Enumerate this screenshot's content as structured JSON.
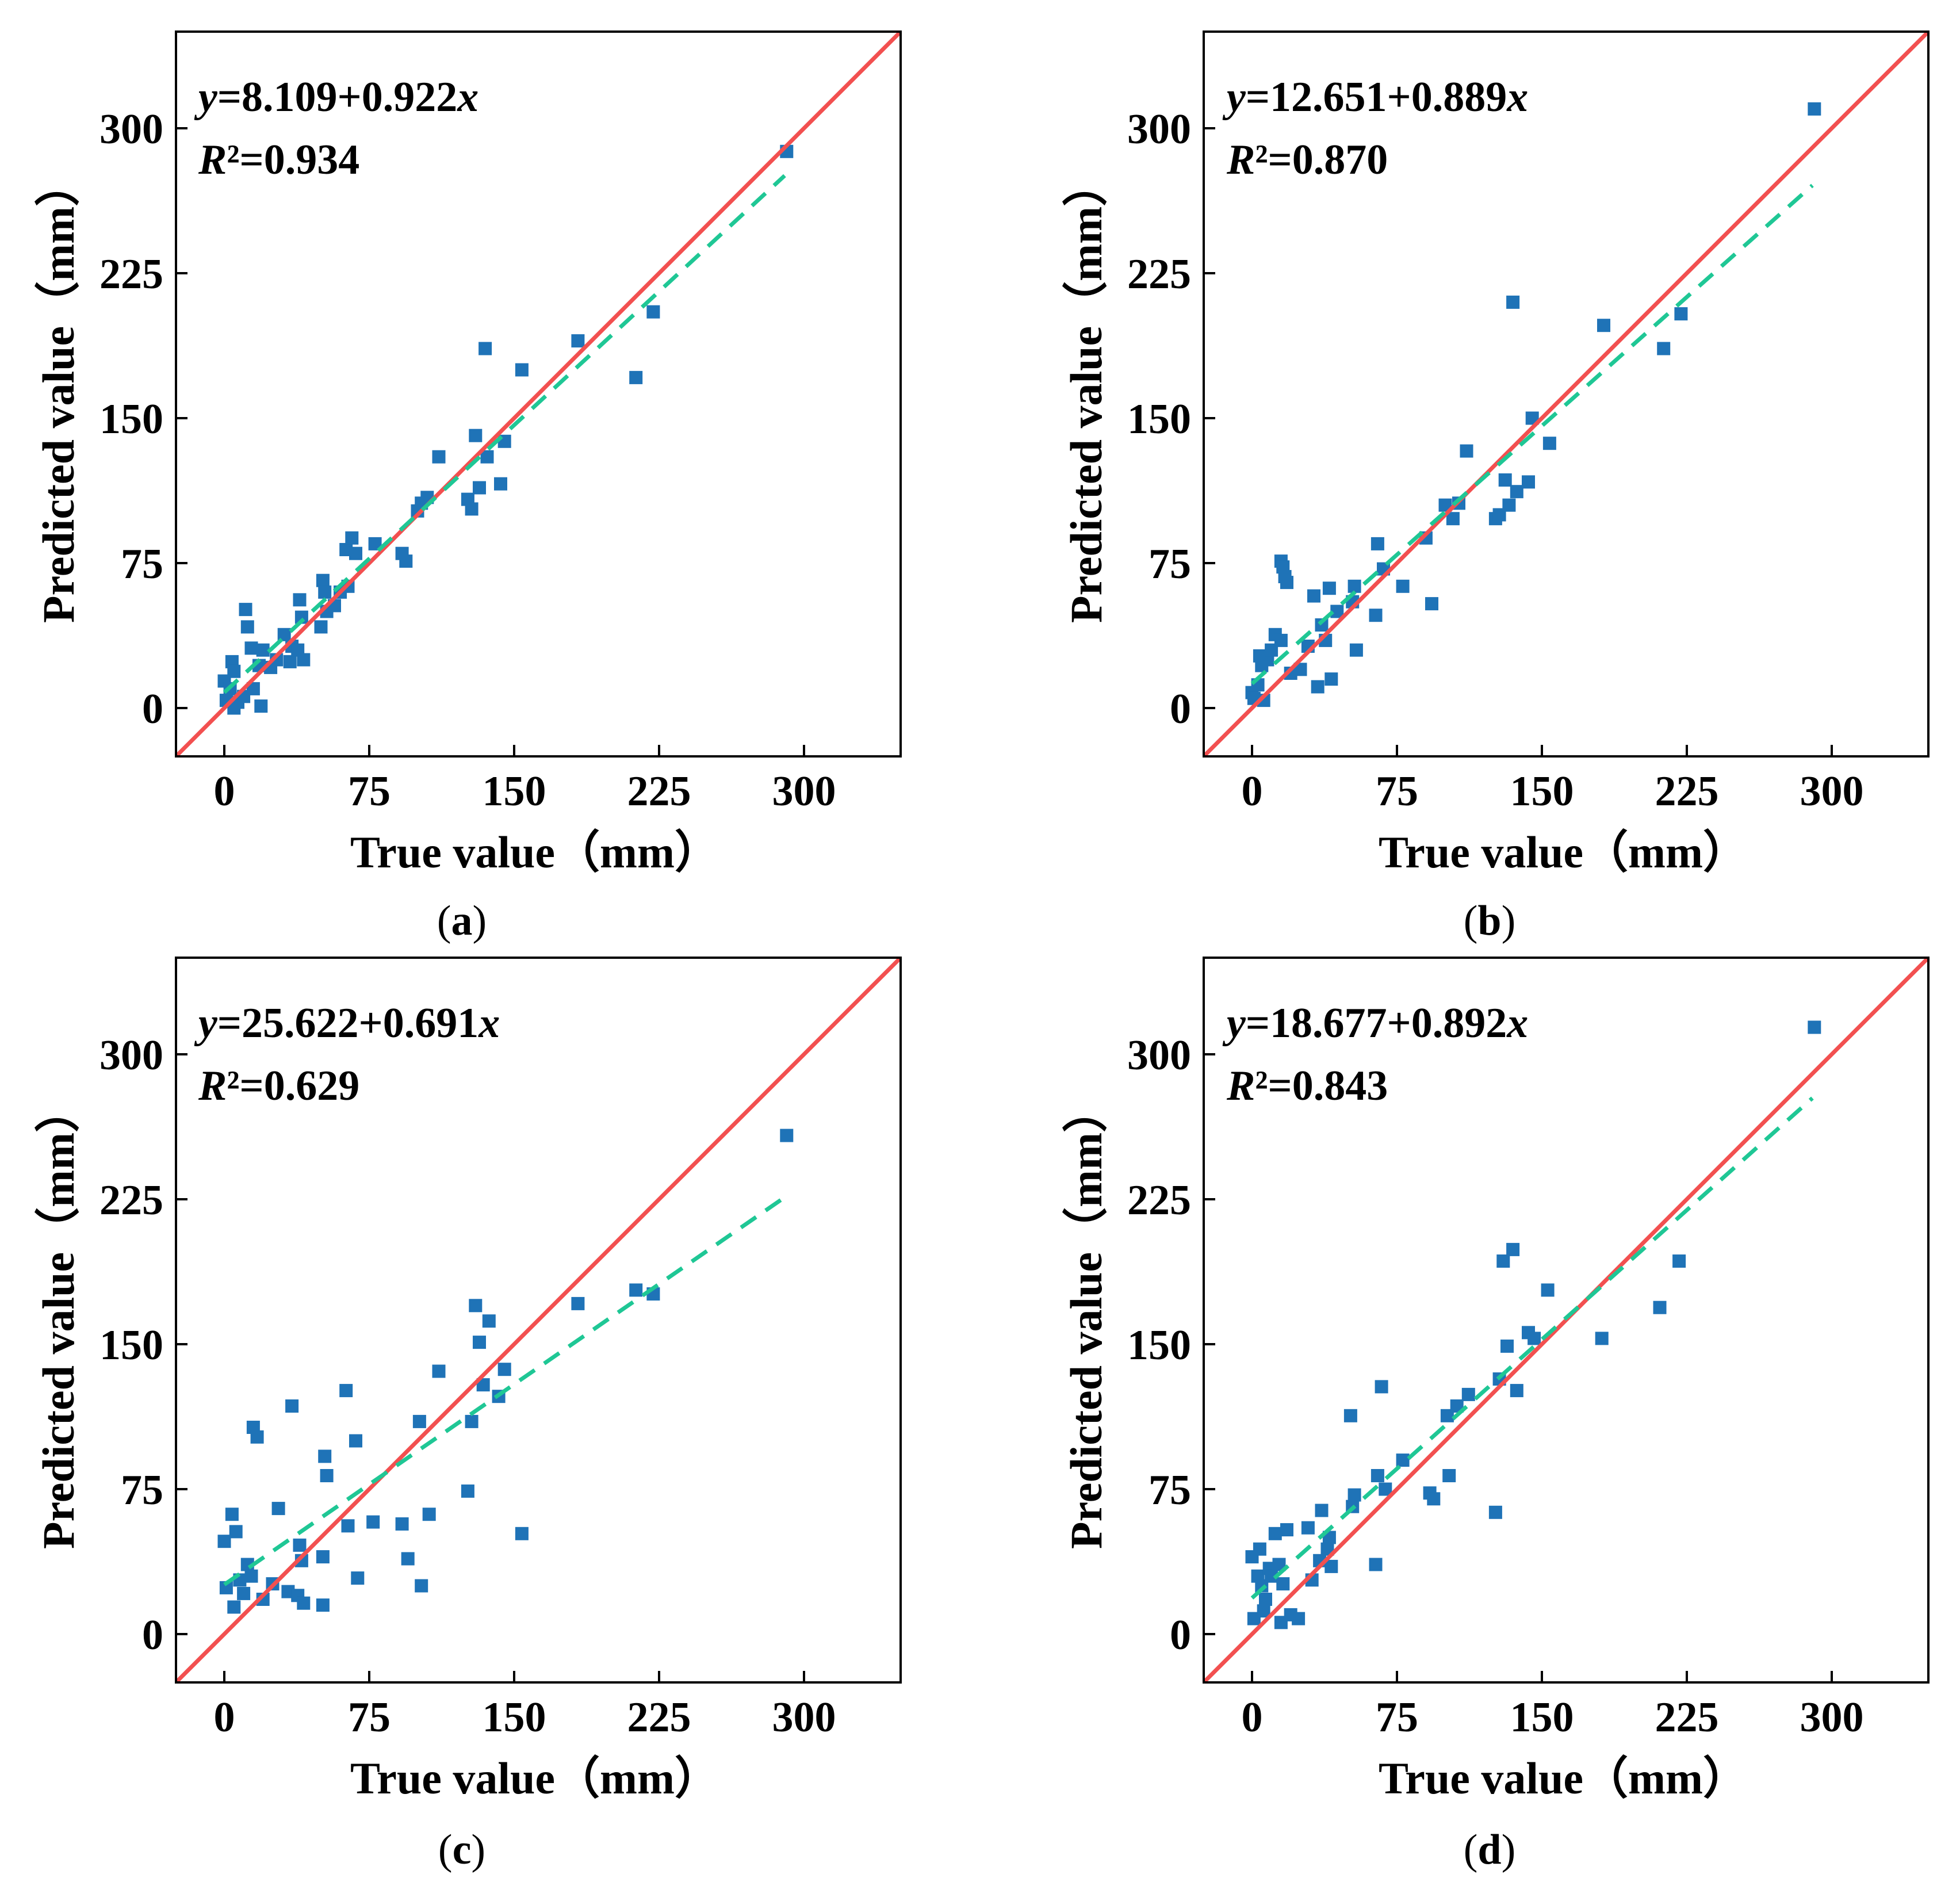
{
  "chart_data": [
    {
      "type": "scatter",
      "panel": "a",
      "caption_prefix": "(",
      "caption_letter": "a",
      "caption_suffix": ")",
      "equation": {
        "y_var": "y",
        "rest": "=8.109+0.922",
        "x_var": "x"
      },
      "r2": {
        "var": "R",
        "rest": "²=0.934"
      },
      "intercept": 8.109,
      "slope": 0.922,
      "xlabel": "True value（mm）",
      "ylabel": "Predicted value（mm）",
      "xlim": [
        -25,
        350
      ],
      "ylim": [
        -25,
        350
      ],
      "xticks": [
        0,
        75,
        150,
        225,
        300
      ],
      "yticks": [
        0,
        75,
        150,
        225,
        300
      ],
      "points": [
        [
          0,
          14
        ],
        [
          1,
          4
        ],
        [
          3,
          10
        ],
        [
          4,
          24
        ],
        [
          5,
          19
        ],
        [
          5,
          0
        ],
        [
          7,
          3
        ],
        [
          10,
          6
        ],
        [
          11,
          51
        ],
        [
          12,
          42
        ],
        [
          14,
          31
        ],
        [
          15,
          10
        ],
        [
          18,
          22
        ],
        [
          19,
          1
        ],
        [
          20,
          30
        ],
        [
          24,
          21
        ],
        [
          27,
          25
        ],
        [
          31,
          38
        ],
        [
          34,
          24
        ],
        [
          35,
          32
        ],
        [
          38,
          30
        ],
        [
          39,
          56
        ],
        [
          40,
          47
        ],
        [
          41,
          25
        ],
        [
          50,
          42
        ],
        [
          51,
          66
        ],
        [
          52,
          60
        ],
        [
          53,
          50
        ],
        [
          57,
          53
        ],
        [
          60,
          60
        ],
        [
          63,
          82
        ],
        [
          64,
          63
        ],
        [
          66,
          88
        ],
        [
          68,
          80
        ],
        [
          78,
          85
        ],
        [
          92,
          80
        ],
        [
          94,
          76
        ],
        [
          100,
          102
        ],
        [
          102,
          106
        ],
        [
          105,
          109
        ],
        [
          111,
          130
        ],
        [
          126,
          108
        ],
        [
          128,
          103
        ],
        [
          130,
          141
        ],
        [
          132,
          114
        ],
        [
          135,
          186
        ],
        [
          136,
          130
        ],
        [
          143,
          116
        ],
        [
          145,
          138
        ],
        [
          154,
          175
        ],
        [
          183,
          190
        ],
        [
          213,
          171
        ],
        [
          222,
          205
        ],
        [
          291,
          288
        ]
      ]
    },
    {
      "type": "scatter",
      "panel": "b",
      "caption_prefix": "(",
      "caption_letter": "b",
      "caption_suffix": ")",
      "equation": {
        "y_var": "y",
        "rest": "=12.651+0.889",
        "x_var": "x"
      },
      "r2": {
        "var": "R",
        "rest": "²=0.870"
      },
      "intercept": 12.651,
      "slope": 0.889,
      "xlabel": "True value（mm）",
      "ylabel": "Predicted value（mm）",
      "xlim": [
        -25,
        350
      ],
      "ylim": [
        -25,
        350
      ],
      "xticks": [
        0,
        75,
        150,
        225,
        300
      ],
      "yticks": [
        0,
        75,
        150,
        225,
        300
      ],
      "points": [
        [
          0,
          8
        ],
        [
          1,
          5
        ],
        [
          3,
          12
        ],
        [
          4,
          27
        ],
        [
          5,
          22
        ],
        [
          6,
          4
        ],
        [
          8,
          25
        ],
        [
          10,
          30
        ],
        [
          12,
          38
        ],
        [
          15,
          35
        ],
        [
          15,
          76
        ],
        [
          16,
          73
        ],
        [
          17,
          68
        ],
        [
          18,
          65
        ],
        [
          20,
          18
        ],
        [
          25,
          20
        ],
        [
          29,
          32
        ],
        [
          32,
          58
        ],
        [
          34,
          11
        ],
        [
          36,
          43
        ],
        [
          38,
          35
        ],
        [
          40,
          62
        ],
        [
          41,
          15
        ],
        [
          44,
          50
        ],
        [
          52,
          55
        ],
        [
          53,
          63
        ],
        [
          54,
          30
        ],
        [
          64,
          48
        ],
        [
          65,
          85
        ],
        [
          68,
          72
        ],
        [
          78,
          63
        ],
        [
          90,
          88
        ],
        [
          93,
          54
        ],
        [
          100,
          105
        ],
        [
          104,
          98
        ],
        [
          107,
          106
        ],
        [
          111,
          133
        ],
        [
          126,
          98
        ],
        [
          128,
          100
        ],
        [
          131,
          118
        ],
        [
          133,
          105
        ],
        [
          135,
          210
        ],
        [
          137,
          112
        ],
        [
          143,
          117
        ],
        [
          145,
          150
        ],
        [
          154,
          137
        ],
        [
          182,
          198
        ],
        [
          213,
          186
        ],
        [
          222,
          204
        ],
        [
          291,
          310
        ]
      ]
    },
    {
      "type": "scatter",
      "panel": "c",
      "caption_prefix": "(",
      "caption_letter": "c",
      "caption_suffix": ")",
      "equation": {
        "y_var": "y",
        "rest": "=25.622+0.691",
        "x_var": "x"
      },
      "r2": {
        "var": "R",
        "rest": "²=0.629"
      },
      "intercept": 25.622,
      "slope": 0.691,
      "xlabel": "True value（mm）",
      "ylabel": "Predicted value（mm）",
      "xlim": [
        -25,
        350
      ],
      "ylim": [
        -25,
        350
      ],
      "xticks": [
        0,
        75,
        150,
        225,
        300
      ],
      "yticks": [
        0,
        75,
        150,
        225,
        300
      ],
      "points": [
        [
          0,
          48
        ],
        [
          1,
          24
        ],
        [
          4,
          62
        ],
        [
          5,
          14
        ],
        [
          6,
          53
        ],
        [
          8,
          28
        ],
        [
          10,
          21
        ],
        [
          12,
          36
        ],
        [
          14,
          30
        ],
        [
          15,
          107
        ],
        [
          17,
          102
        ],
        [
          20,
          18
        ],
        [
          25,
          26
        ],
        [
          28,
          65
        ],
        [
          33,
          22
        ],
        [
          35,
          118
        ],
        [
          38,
          20
        ],
        [
          39,
          46
        ],
        [
          40,
          38
        ],
        [
          41,
          16
        ],
        [
          51,
          40
        ],
        [
          51,
          15
        ],
        [
          52,
          92
        ],
        [
          53,
          82
        ],
        [
          63,
          126
        ],
        [
          64,
          56
        ],
        [
          68,
          100
        ],
        [
          69,
          29
        ],
        [
          77,
          58
        ],
        [
          92,
          57
        ],
        [
          95,
          39
        ],
        [
          101,
          110
        ],
        [
          102,
          25
        ],
        [
          106,
          62
        ],
        [
          111,
          136
        ],
        [
          126,
          74
        ],
        [
          128,
          110
        ],
        [
          130,
          170
        ],
        [
          132,
          151
        ],
        [
          134,
          129
        ],
        [
          137,
          162
        ],
        [
          142,
          123
        ],
        [
          145,
          137
        ],
        [
          154,
          52
        ],
        [
          183,
          171
        ],
        [
          213,
          178
        ],
        [
          222,
          176
        ],
        [
          291,
          258
        ]
      ]
    },
    {
      "type": "scatter",
      "panel": "d",
      "caption_prefix": "(",
      "caption_letter": "d",
      "caption_suffix": ")",
      "equation": {
        "y_var": "y",
        "rest": "=18.677+0.892",
        "x_var": "x"
      },
      "r2": {
        "var": "R",
        "rest": "²=0.843"
      },
      "intercept": 18.677,
      "slope": 0.892,
      "xlabel": "True value（mm）",
      "ylabel": "Predicted value（mm）",
      "xlim": [
        -25,
        350
      ],
      "ylim": [
        -25,
        350
      ],
      "xticks": [
        0,
        75,
        150,
        225,
        300
      ],
      "yticks": [
        0,
        75,
        150,
        225,
        300
      ],
      "points": [
        [
          0,
          40
        ],
        [
          1,
          8
        ],
        [
          3,
          30
        ],
        [
          4,
          44
        ],
        [
          5,
          25
        ],
        [
          6,
          12
        ],
        [
          7,
          18
        ],
        [
          9,
          34
        ],
        [
          10,
          30
        ],
        [
          12,
          52
        ],
        [
          14,
          36
        ],
        [
          15,
          6
        ],
        [
          16,
          26
        ],
        [
          18,
          54
        ],
        [
          20,
          10
        ],
        [
          24,
          8
        ],
        [
          29,
          55
        ],
        [
          31,
          28
        ],
        [
          35,
          38
        ],
        [
          36,
          64
        ],
        [
          39,
          44
        ],
        [
          40,
          50
        ],
        [
          41,
          35
        ],
        [
          51,
          113
        ],
        [
          52,
          66
        ],
        [
          53,
          72
        ],
        [
          64,
          36
        ],
        [
          65,
          82
        ],
        [
          67,
          128
        ],
        [
          69,
          75
        ],
        [
          78,
          90
        ],
        [
          92,
          73
        ],
        [
          94,
          70
        ],
        [
          101,
          113
        ],
        [
          102,
          82
        ],
        [
          106,
          118
        ],
        [
          112,
          124
        ],
        [
          126,
          63
        ],
        [
          128,
          132
        ],
        [
          130,
          193
        ],
        [
          132,
          149
        ],
        [
          135,
          199
        ],
        [
          137,
          126
        ],
        [
          143,
          156
        ],
        [
          146,
          153
        ],
        [
          153,
          178
        ],
        [
          181,
          153
        ],
        [
          211,
          169
        ],
        [
          221,
          193
        ],
        [
          291,
          314
        ]
      ]
    }
  ]
}
